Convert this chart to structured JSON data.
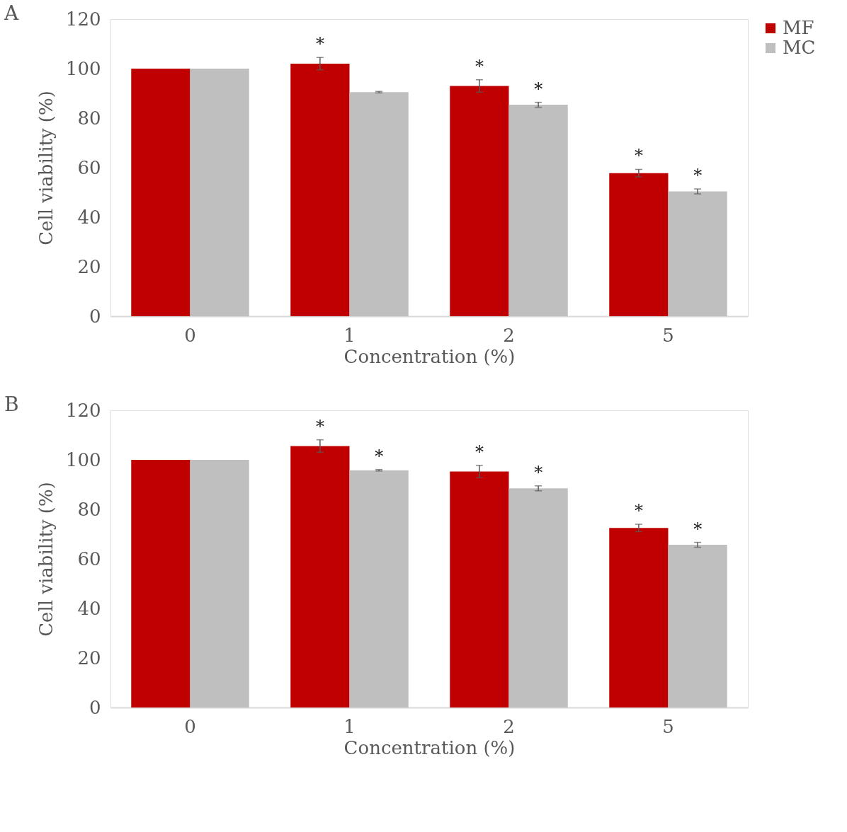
{
  "chart_data": [
    {
      "type": "bar",
      "title": "A",
      "xlabel": "Concentration (%)",
      "ylabel": "Cell viability (%)",
      "categories": [
        "0",
        "1",
        "2",
        "5"
      ],
      "ylim": [
        0,
        120
      ],
      "yticks": [
        0,
        20,
        40,
        60,
        80,
        100,
        120
      ],
      "grid": false,
      "legend": "right",
      "series": [
        {
          "name": "MF",
          "color": "#c00000",
          "values": [
            100,
            102,
            93,
            57.8
          ],
          "errors": [
            null,
            2.5,
            2.5,
            1.5
          ],
          "value_labels": [
            null,
            "*",
            "*",
            "*"
          ]
        },
        {
          "name": "MC",
          "color": "#bfbfbf",
          "values": [
            100,
            90.5,
            85.4,
            50.4
          ],
          "errors": [
            null,
            0.3,
            1,
            1
          ],
          "value_labels": [
            null,
            null,
            "*",
            "*"
          ]
        }
      ]
    },
    {
      "type": "bar",
      "title": "B",
      "xlabel": "Concentration (%)",
      "ylabel": "Cell viability (%)",
      "categories": [
        "0",
        "1",
        "2",
        "5"
      ],
      "ylim": [
        0,
        120
      ],
      "yticks": [
        0,
        20,
        40,
        60,
        80,
        100,
        120
      ],
      "grid": false,
      "legend": "right",
      "series": [
        {
          "name": "MF",
          "color": "#c00000",
          "values": [
            100,
            105.6,
            95.3,
            72.5
          ],
          "errors": [
            null,
            2.5,
            2.5,
            1.5
          ],
          "value_labels": [
            null,
            "*",
            "*",
            "*"
          ]
        },
        {
          "name": "MC",
          "color": "#bfbfbf",
          "values": [
            100,
            95.8,
            88.5,
            65.7
          ],
          "errors": [
            null,
            0.3,
            1,
            1
          ],
          "value_labels": [
            null,
            "*",
            "*",
            "*"
          ]
        }
      ]
    }
  ]
}
